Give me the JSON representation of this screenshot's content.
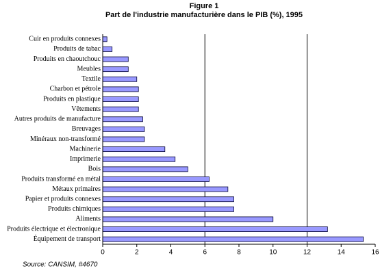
{
  "chart_data": {
    "type": "barh",
    "title": "Figure 1",
    "subtitle": "Part de l'industrie manufacturière dans le PIB (%), 1995",
    "source": "Source: CANSIM, #4670",
    "categories": [
      "Cuir en produits connexes",
      "Produits de tabac",
      "Produits en chaoutchouc",
      "Meubles",
      "Textile",
      "Charbon et pétrole",
      "Produits en plastique",
      "Vêtements",
      "Autres produits de manufacture",
      "Breuvages",
      "Minéraux non-transformé",
      "Machinerie",
      "Imprimerie",
      "Bois",
      "Produits transformé en métal",
      "Métaux primaires",
      "Papier et produits connexes",
      "Produits chimiques",
      "Aliments",
      "Produits électrique et électronique",
      "Équipement de transport"
    ],
    "values": [
      0.25,
      0.55,
      1.5,
      1.5,
      2.0,
      2.1,
      2.1,
      2.1,
      2.35,
      2.45,
      2.45,
      3.65,
      4.25,
      5.0,
      6.25,
      7.35,
      7.7,
      7.7,
      10.0,
      13.2,
      15.3
    ],
    "color": "#9999ff",
    "xlim": [
      0,
      16
    ],
    "xticks": [
      0,
      2,
      4,
      6,
      8,
      10,
      12,
      14,
      16
    ],
    "gridlines": [
      6,
      12
    ]
  }
}
